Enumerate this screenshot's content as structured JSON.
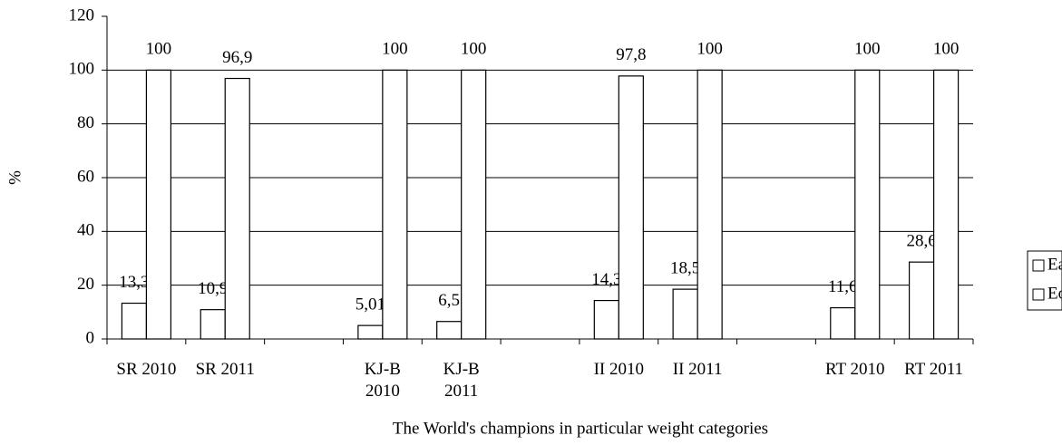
{
  "chart_data": {
    "type": "bar",
    "xlabel": "The World's champions in particular weight categories",
    "ylabel": "%",
    "categories": [
      "SR 2010",
      "SR 2011",
      null,
      "KJ-B 2010",
      "KJ-B 2011",
      null,
      "II 2010",
      "II 2011",
      null,
      "RT 2010",
      "RT 2011"
    ],
    "series": [
      {
        "name": "Ea",
        "color": "#ffffff",
        "values": [
          13.3,
          10.9,
          null,
          5.01,
          6.5,
          null,
          14.3,
          18.5,
          null,
          11.6,
          28.6
        ],
        "value_labels": [
          "13,3",
          "10,9",
          null,
          "5,01",
          "6,5",
          null,
          "14,3",
          "18,5",
          null,
          "11,6",
          "28,6"
        ]
      },
      {
        "name": "Eo",
        "color": "#ffffff",
        "values": [
          100,
          96.9,
          null,
          100,
          100,
          null,
          97.8,
          100,
          null,
          100,
          100
        ],
        "value_labels": [
          "100",
          "96,9",
          null,
          "100",
          "100",
          null,
          "97,8",
          "100",
          null,
          "100",
          "100"
        ]
      }
    ],
    "ylim": [
      0,
      120
    ],
    "yticks": [
      0,
      20,
      40,
      60,
      80,
      100,
      120
    ],
    "grid": true,
    "legend": "right"
  }
}
